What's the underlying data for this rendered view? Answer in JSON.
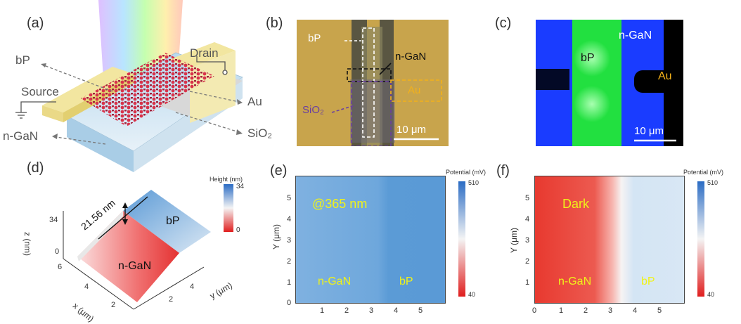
{
  "panels": {
    "a": {
      "label": "(a)",
      "drain": "Drain",
      "source": "Source",
      "bp": "bP",
      "au": "Au",
      "ngan": "n-GaN",
      "sio2": "SiO₂"
    },
    "b": {
      "label": "(b)",
      "bp": "bP",
      "ngan": "n-GaN",
      "au": "Au",
      "sio2": "SiO₂",
      "scale": "10 μm"
    },
    "c": {
      "label": "(c)",
      "ngan": "n-GaN",
      "bp": "bP",
      "au": "Au",
      "scale": "10 μm"
    },
    "d": {
      "label": "(d)",
      "height_title": "Height (nm)",
      "cb_max": "34",
      "cb_min": "0",
      "step": "21.56 nm",
      "bp": "bP",
      "ngan": "n-GaN",
      "z_axis": "z (nm)",
      "z_ticks": [
        "34",
        "0"
      ],
      "x_axis": "x (μm)",
      "y_axis": "y (μm)",
      "x_ticks": [
        "6",
        "4",
        "2"
      ],
      "y_ticks": [
        "2",
        "4"
      ]
    },
    "e": {
      "label": "(e)",
      "potential_title": "Potential (mV)",
      "cb_max": "510",
      "cb_min": "40",
      "wavelength": "@365 nm",
      "ngan": "n-GaN",
      "bp": "bP",
      "ylabel": "Y (μm)",
      "yticks": [
        "5",
        "4",
        "3",
        "2",
        "1",
        "0"
      ],
      "xticks": [
        "1",
        "2",
        "3",
        "4",
        "5"
      ]
    },
    "f": {
      "label": "(f)",
      "potential_title": "Potential (mV)",
      "cb_max": "510",
      "cb_min": "40",
      "condition": "Dark",
      "ngan": "n-GaN",
      "bp": "bP",
      "ylabel": "Y (μm)",
      "yticks": [
        "5",
        "4",
        "3",
        "2",
        "1",
        "0"
      ],
      "xticks": [
        "0",
        "1",
        "2",
        "3",
        "4",
        "5"
      ]
    }
  },
  "colors": {
    "gold": "#d9c05a",
    "bp_red": "#d8324a",
    "ngan_blue": "#1a3cff",
    "bp_green": "#22e040",
    "kpfm_blue": "#5f9fd8",
    "kpfm_red": "#e8392f"
  }
}
